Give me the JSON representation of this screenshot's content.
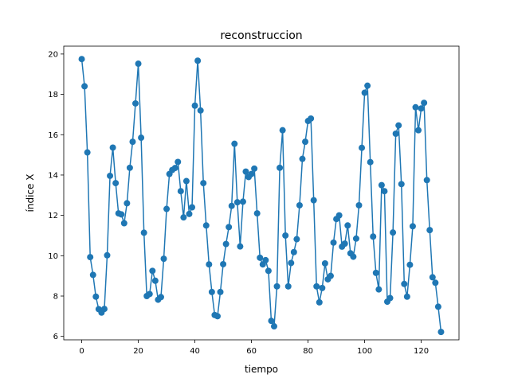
{
  "chart_data": {
    "type": "line",
    "title": "reconstruccion",
    "xlabel": "tiempo",
    "ylabel": "índice X",
    "xlim": [
      -6.35,
      133.35
    ],
    "ylim": [
      5.83,
      20.39
    ],
    "xticks": [
      0,
      20,
      40,
      60,
      80,
      100,
      120
    ],
    "yticks": [
      6,
      8,
      10,
      12,
      14,
      16,
      18,
      20
    ],
    "grid": false,
    "marker": "circle",
    "line_color": "#1f77b4",
    "series": [
      {
        "x": [
          0,
          1,
          2,
          3,
          4,
          5,
          6,
          7,
          8,
          9,
          10,
          11,
          12,
          13,
          14,
          15,
          16,
          17,
          18,
          19,
          20,
          21,
          22,
          23,
          24,
          25,
          26,
          27,
          28,
          29,
          30,
          31,
          32,
          33,
          34,
          35,
          36,
          37,
          38,
          39,
          40,
          41,
          42,
          43,
          44,
          45,
          46,
          47,
          48,
          49,
          50,
          51,
          52,
          53,
          54,
          55,
          56,
          57,
          58,
          59,
          60,
          61,
          62,
          63,
          64,
          65,
          66,
          67,
          68,
          69,
          70,
          71,
          72,
          73,
          74,
          75,
          76,
          77,
          78,
          79,
          80,
          81,
          82,
          83,
          84,
          85,
          86,
          87,
          88,
          89,
          90,
          91,
          92,
          93,
          94,
          95,
          96,
          97,
          98,
          99,
          100,
          101,
          102,
          103,
          104,
          105,
          106,
          107,
          108,
          109,
          110,
          111,
          112,
          113,
          114,
          115,
          116,
          117,
          118,
          119,
          120,
          121,
          122,
          123,
          124,
          125,
          126,
          127
        ],
        "values": [
          19.75,
          18.4,
          15.12,
          9.93,
          9.05,
          7.97,
          7.35,
          7.18,
          7.36,
          10.02,
          13.96,
          15.36,
          13.6,
          12.1,
          12.05,
          11.61,
          12.6,
          14.36,
          15.65,
          17.55,
          19.52,
          15.85,
          11.14,
          8.0,
          8.1,
          9.25,
          8.76,
          7.82,
          7.95,
          9.85,
          12.32,
          14.05,
          14.25,
          14.35,
          14.65,
          13.2,
          11.9,
          13.7,
          12.07,
          12.4,
          17.44,
          19.67,
          17.2,
          13.6,
          11.5,
          9.57,
          8.2,
          7.06,
          7.0,
          8.2,
          9.58,
          10.58,
          11.42,
          12.47,
          15.55,
          12.65,
          10.46,
          12.68,
          14.17,
          13.9,
          14.05,
          14.32,
          12.1,
          9.9,
          9.57,
          9.78,
          9.25,
          6.77,
          6.5,
          8.48,
          14.36,
          16.22,
          11.0,
          8.48,
          9.64,
          10.18,
          10.82,
          12.5,
          14.8,
          15.65,
          16.68,
          16.8,
          12.75,
          8.48,
          7.69,
          8.4,
          9.62,
          8.83,
          9.0,
          10.65,
          11.82,
          12.0,
          10.45,
          10.6,
          11.5,
          10.12,
          9.95,
          10.85,
          12.5,
          15.35,
          18.08,
          18.43,
          14.64,
          10.95,
          9.15,
          8.33,
          13.5,
          13.2,
          7.72,
          7.9,
          11.15,
          16.05,
          16.46,
          13.55,
          8.6,
          7.97,
          9.55,
          11.46,
          17.36,
          16.22,
          17.3,
          17.58,
          13.75,
          11.27,
          8.93,
          8.66,
          7.47,
          6.22
        ]
      }
    ]
  }
}
